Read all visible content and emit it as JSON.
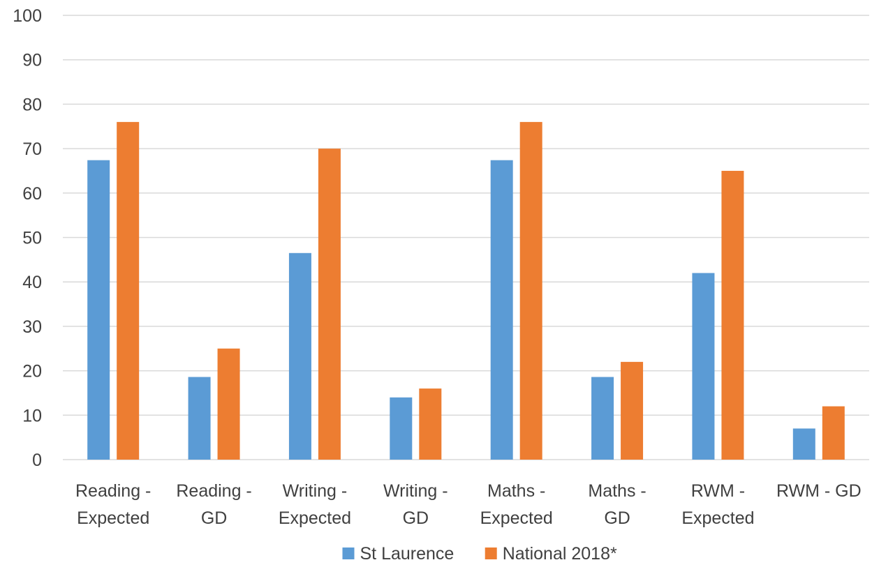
{
  "chart_data": {
    "type": "bar",
    "title": "",
    "xlabel": "",
    "ylabel": "",
    "categories": [
      [
        "Reading -",
        "Expected"
      ],
      [
        "Reading -",
        "GD"
      ],
      [
        "Writing -",
        "Expected"
      ],
      [
        "Writing -",
        "GD"
      ],
      [
        "Maths -",
        "Expected"
      ],
      [
        "Maths  -",
        "GD"
      ],
      [
        "RWM -",
        "Expected"
      ],
      [
        "RWM - GD"
      ]
    ],
    "series": [
      {
        "name": "St Laurence",
        "color": "#5B9BD5",
        "values": [
          67.4,
          18.6,
          46.5,
          14,
          67.4,
          18.6,
          42,
          7
        ]
      },
      {
        "name": "National 2018*",
        "color": "#ED7D31",
        "values": [
          76,
          25,
          70,
          16,
          76,
          22,
          65,
          12
        ]
      }
    ],
    "ylim": [
      0,
      100
    ],
    "yticks": [
      0,
      10,
      20,
      30,
      40,
      50,
      60,
      70,
      80,
      90,
      100
    ],
    "grid": true,
    "gridColor": "#d9d9d9",
    "legend": "bottom-center"
  }
}
